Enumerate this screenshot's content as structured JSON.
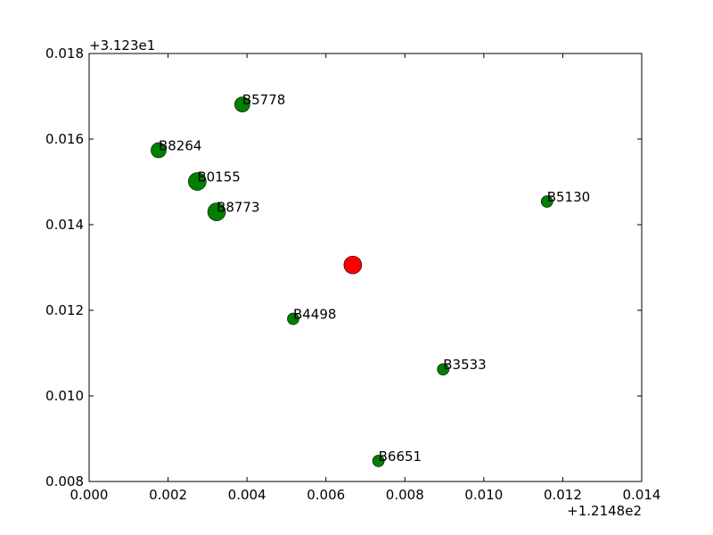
{
  "chart_data": {
    "type": "scatter",
    "title": "",
    "xlabel": "",
    "ylabel": "",
    "x_offset_label": "+1.2148e2",
    "y_offset_label": "+3.123e1",
    "xlim": [
      0.0,
      0.014
    ],
    "ylim": [
      0.008,
      0.018
    ],
    "x_ticks": [
      "0.000",
      "0.002",
      "0.004",
      "0.006",
      "0.008",
      "0.010",
      "0.012",
      "0.014"
    ],
    "y_ticks": [
      "0.008",
      "0.010",
      "0.012",
      "0.014",
      "0.016",
      "0.018"
    ],
    "grid": false,
    "colors": {
      "points": "#008000",
      "highlight": "#ff0000"
    },
    "points": [
      {
        "label": "B5778",
        "x": 0.00388,
        "y": 0.01681,
        "size": "medium"
      },
      {
        "label": "B8264",
        "x": 0.00176,
        "y": 0.01574,
        "size": "medium"
      },
      {
        "label": "B0155",
        "x": 0.00274,
        "y": 0.01501,
        "size": "large"
      },
      {
        "label": "B8773",
        "x": 0.00323,
        "y": 0.0143,
        "size": "large"
      },
      {
        "label": "B5130",
        "x": 0.0116,
        "y": 0.01454,
        "size": "small"
      },
      {
        "label": "B4498",
        "x": 0.00517,
        "y": 0.0118,
        "size": "small"
      },
      {
        "label": "B3533",
        "x": 0.00897,
        "y": 0.01062,
        "size": "small"
      },
      {
        "label": "B6651",
        "x": 0.00733,
        "y": 0.00848,
        "size": "small"
      }
    ],
    "highlight_point": {
      "x": 0.00668,
      "y": 0.01306
    }
  }
}
